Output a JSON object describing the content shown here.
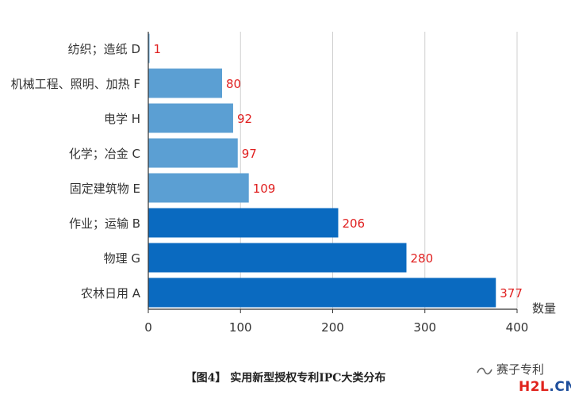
{
  "chart_data": {
    "type": "bar",
    "orientation": "horizontal",
    "categories": [
      "纺织；造纸 D",
      "机械工程、照明、加热 F",
      "电学 H",
      "化学；冶金 C",
      "固定建筑物 E",
      "作业；运输 B",
      "物理 G",
      "农林日用 A"
    ],
    "values": [
      1,
      80,
      92,
      97,
      109,
      206,
      280,
      377
    ],
    "bar_colors": [
      "#5b9fd3",
      "#5b9fd3",
      "#5b9fd3",
      "#5b9fd3",
      "#5b9fd3",
      "#0a6ac0",
      "#0a6ac0",
      "#0a6ac0"
    ],
    "label_color": "#e02020",
    "xlabel": "数量",
    "xlim": [
      0,
      400
    ],
    "xticks": [
      0,
      100,
      200,
      300,
      400
    ],
    "grid": true
  },
  "caption": "【图4】 实用新型授权专利IPC大类分布",
  "watermark": {
    "account": "赛子专利",
    "site_a": "H2L",
    "site_b": ".CN"
  }
}
